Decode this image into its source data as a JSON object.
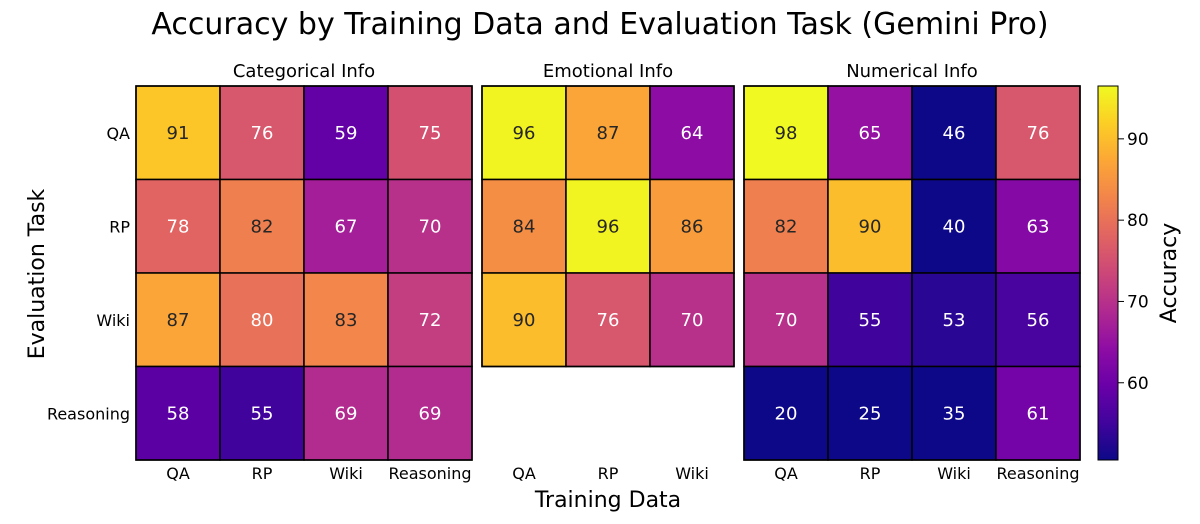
{
  "chart_data": {
    "type": "heatmap",
    "title": "Accuracy by Training Data and Evaluation Task (Gemini Pro)",
    "xlabel": "Training Data",
    "ylabel": "Evaluation Task",
    "rows": [
      "QA",
      "RP",
      "Wiki",
      "Reasoning"
    ],
    "colorbar": {
      "label": "Accuracy",
      "range": [
        50.5,
        96.5
      ],
      "ticks": [
        60,
        70,
        80,
        90
      ],
      "colormap": "plasma"
    },
    "panels": [
      {
        "name": "Categorical Info",
        "columns": [
          "QA",
          "RP",
          "Wiki",
          "Reasoning"
        ],
        "values": [
          [
            91,
            76,
            59,
            75
          ],
          [
            78,
            82,
            67,
            70
          ],
          [
            87,
            80,
            83,
            72
          ],
          [
            58,
            55,
            69,
            69
          ]
        ]
      },
      {
        "name": "Emotional Info",
        "columns": [
          "QA",
          "RP",
          "Wiki"
        ],
        "values": [
          [
            96,
            87,
            64
          ],
          [
            84,
            96,
            86
          ],
          [
            90,
            76,
            70
          ],
          [
            null,
            null,
            null
          ]
        ]
      },
      {
        "name": "Numerical Info",
        "columns": [
          "QA",
          "RP",
          "Wiki",
          "Reasoning"
        ],
        "values": [
          [
            98,
            65,
            46,
            76
          ],
          [
            82,
            90,
            40,
            63
          ],
          [
            70,
            55,
            53,
            56
          ],
          [
            20,
            25,
            35,
            61
          ]
        ]
      }
    ]
  }
}
